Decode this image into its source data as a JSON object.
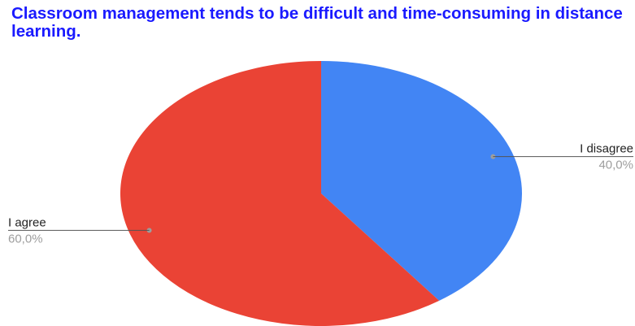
{
  "chart_data": {
    "type": "pie",
    "title": "Classroom management tends to be difficult and time-consuming in distance learning.",
    "categories": [
      "I disagree",
      "I agree"
    ],
    "values": [
      40,
      60
    ],
    "value_labels": [
      "40,0%",
      "60,0%"
    ],
    "colors": [
      "#4285f4",
      "#ea4335"
    ]
  }
}
